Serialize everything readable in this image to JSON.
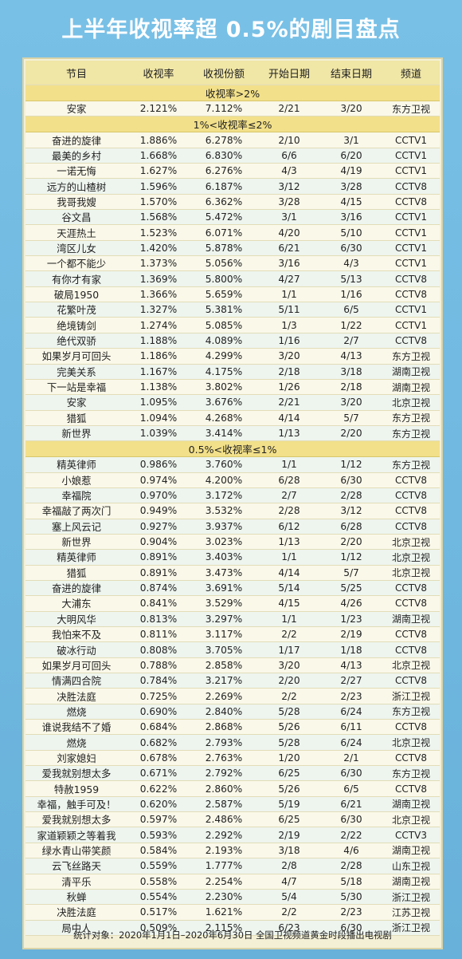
{
  "title": "上半年收视率超 0.5%的剧目盘点",
  "columns": [
    "节目",
    "收视率",
    "收视份额",
    "开始日期",
    "结束日期",
    "频道"
  ],
  "sections": [
    {
      "label": "收视率>2%",
      "rows": [
        [
          "安家",
          "2.121%",
          "7.112%",
          "2/21",
          "3/20",
          "东方卫视"
        ]
      ]
    },
    {
      "label": "1%<收视率≤2%",
      "rows": [
        [
          "奋进的旋律",
          "1.886%",
          "6.278%",
          "2/10",
          "3/1",
          "CCTV1"
        ],
        [
          "最美的乡村",
          "1.668%",
          "6.830%",
          "6/6",
          "6/20",
          "CCTV1"
        ],
        [
          "一诺无悔",
          "1.627%",
          "6.276%",
          "4/3",
          "4/19",
          "CCTV1"
        ],
        [
          "远方的山楂树",
          "1.596%",
          "6.187%",
          "3/12",
          "3/28",
          "CCTV8"
        ],
        [
          "我哥我嫂",
          "1.570%",
          "6.362%",
          "3/28",
          "4/15",
          "CCTV8"
        ],
        [
          "谷文昌",
          "1.568%",
          "5.472%",
          "3/1",
          "3/16",
          "CCTV1"
        ],
        [
          "天涯热土",
          "1.523%",
          "6.071%",
          "4/20",
          "5/10",
          "CCTV1"
        ],
        [
          "湾区儿女",
          "1.420%",
          "5.878%",
          "6/21",
          "6/30",
          "CCTV1"
        ],
        [
          "一个都不能少",
          "1.373%",
          "5.056%",
          "3/16",
          "4/3",
          "CCTV1"
        ],
        [
          "有你才有家",
          "1.369%",
          "5.800%",
          "4/27",
          "5/13",
          "CCTV8"
        ],
        [
          "破局1950",
          "1.366%",
          "5.659%",
          "1/1",
          "1/16",
          "CCTV8"
        ],
        [
          "花繁叶茂",
          "1.327%",
          "5.381%",
          "5/11",
          "6/5",
          "CCTV1"
        ],
        [
          "绝境铸剑",
          "1.274%",
          "5.085%",
          "1/3",
          "1/22",
          "CCTV1"
        ],
        [
          "绝代双骄",
          "1.188%",
          "4.089%",
          "1/16",
          "2/7",
          "CCTV8"
        ],
        [
          "如果岁月可回头",
          "1.186%",
          "4.299%",
          "3/20",
          "4/13",
          "东方卫视"
        ],
        [
          "完美关系",
          "1.167%",
          "4.175%",
          "2/18",
          "3/18",
          "湖南卫视"
        ],
        [
          "下一站是幸福",
          "1.138%",
          "3.802%",
          "1/26",
          "2/18",
          "湖南卫视"
        ],
        [
          "安家",
          "1.095%",
          "3.676%",
          "2/21",
          "3/20",
          "北京卫视"
        ],
        [
          "猎狐",
          "1.094%",
          "4.268%",
          "4/14",
          "5/7",
          "东方卫视"
        ],
        [
          "新世界",
          "1.039%",
          "3.414%",
          "1/13",
          "2/20",
          "东方卫视"
        ]
      ]
    },
    {
      "label": "0.5%<收视率≤1%",
      "rows": [
        [
          "精英律师",
          "0.986%",
          "3.760%",
          "1/1",
          "1/12",
          "东方卫视"
        ],
        [
          "小娘惹",
          "0.974%",
          "4.200%",
          "6/28",
          "6/30",
          "CCTV8"
        ],
        [
          "幸福院",
          "0.970%",
          "3.172%",
          "2/7",
          "2/28",
          "CCTV8"
        ],
        [
          "幸福敲了两次门",
          "0.949%",
          "3.532%",
          "2/28",
          "3/12",
          "CCTV8"
        ],
        [
          "塞上风云记",
          "0.927%",
          "3.937%",
          "6/12",
          "6/28",
          "CCTV8"
        ],
        [
          "新世界",
          "0.904%",
          "3.023%",
          "1/13",
          "2/20",
          "北京卫视"
        ],
        [
          "精英律师",
          "0.891%",
          "3.403%",
          "1/1",
          "1/12",
          "北京卫视"
        ],
        [
          "猎狐",
          "0.891%",
          "3.473%",
          "4/14",
          "5/7",
          "北京卫视"
        ],
        [
          "奋进的旋律",
          "0.874%",
          "3.691%",
          "5/14",
          "5/25",
          "CCTV8"
        ],
        [
          "大浦东",
          "0.841%",
          "3.529%",
          "4/15",
          "4/26",
          "CCTV8"
        ],
        [
          "大明风华",
          "0.813%",
          "3.297%",
          "1/1",
          "1/23",
          "湖南卫视"
        ],
        [
          "我怕来不及",
          "0.811%",
          "3.117%",
          "2/2",
          "2/19",
          "CCTV8"
        ],
        [
          "破冰行动",
          "0.808%",
          "3.705%",
          "1/17",
          "1/18",
          "CCTV8"
        ],
        [
          "如果岁月可回头",
          "0.788%",
          "2.858%",
          "3/20",
          "4/13",
          "北京卫视"
        ],
        [
          "情满四合院",
          "0.784%",
          "3.217%",
          "2/20",
          "2/27",
          "CCTV8"
        ],
        [
          "决胜法庭",
          "0.725%",
          "2.269%",
          "2/2",
          "2/23",
          "浙江卫视"
        ],
        [
          "燃烧",
          "0.690%",
          "2.840%",
          "5/28",
          "6/24",
          "东方卫视"
        ],
        [
          "谁说我结不了婚",
          "0.684%",
          "2.868%",
          "5/26",
          "6/11",
          "CCTV8"
        ],
        [
          "燃烧",
          "0.682%",
          "2.793%",
          "5/28",
          "6/24",
          "北京卫视"
        ],
        [
          "刘家媳妇",
          "0.678%",
          "2.763%",
          "1/20",
          "2/1",
          "CCTV8"
        ],
        [
          "爱我就别想太多",
          "0.671%",
          "2.792%",
          "6/25",
          "6/30",
          "东方卫视"
        ],
        [
          "特赦1959",
          "0.622%",
          "2.860%",
          "5/26",
          "6/5",
          "CCTV8"
        ],
        [
          "幸福，触手可及！",
          "0.620%",
          "2.587%",
          "5/19",
          "6/21",
          "湖南卫视"
        ],
        [
          "爱我就别想太多",
          "0.597%",
          "2.486%",
          "6/25",
          "6/30",
          "北京卫视"
        ],
        [
          "家道颖颖之等着我",
          "0.593%",
          "2.292%",
          "2/19",
          "2/22",
          "CCTV3"
        ],
        [
          "绿水青山带笑颜",
          "0.584%",
          "2.193%",
          "3/18",
          "4/6",
          "湖南卫视"
        ],
        [
          "云飞丝路天",
          "0.559%",
          "1.777%",
          "2/8",
          "2/28",
          "山东卫视"
        ],
        [
          "清平乐",
          "0.558%",
          "2.254%",
          "4/7",
          "5/18",
          "湖南卫视"
        ],
        [
          "秋蝉",
          "0.554%",
          "2.230%",
          "5/4",
          "5/30",
          "浙江卫视"
        ],
        [
          "决胜法庭",
          "0.517%",
          "1.621%",
          "2/2",
          "2/23",
          "江苏卫视"
        ],
        [
          "局中人",
          "0.509%",
          "2.115%",
          "6/23",
          "6/30",
          "浙江卫视"
        ]
      ]
    }
  ],
  "footer": "统计对象：2020年1月1日–2020年6月30日 全国卫视频道黄金时段播出电视剧"
}
